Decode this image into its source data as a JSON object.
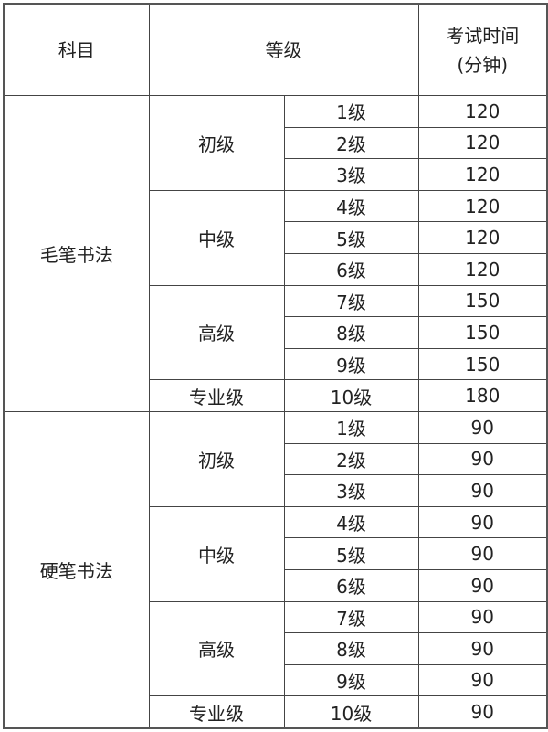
{
  "header": {
    "subject": "科目",
    "level": "等级",
    "time_line1": "考试时间",
    "time_line2": "(分钟)"
  },
  "subjects": [
    {
      "name": "毛笔书法",
      "groups": [
        {
          "name": "初级",
          "rows": [
            {
              "grade": "1级",
              "time": "120"
            },
            {
              "grade": "2级",
              "time": "120"
            },
            {
              "grade": "3级",
              "time": "120"
            }
          ]
        },
        {
          "name": "中级",
          "rows": [
            {
              "grade": "4级",
              "time": "120"
            },
            {
              "grade": "5级",
              "time": "120"
            },
            {
              "grade": "6级",
              "time": "120"
            }
          ]
        },
        {
          "name": "高级",
          "rows": [
            {
              "grade": "7级",
              "time": "150"
            },
            {
              "grade": "8级",
              "time": "150"
            },
            {
              "grade": "9级",
              "time": "150"
            }
          ]
        },
        {
          "name": "专业级",
          "rows": [
            {
              "grade": "10级",
              "time": "180"
            }
          ]
        }
      ]
    },
    {
      "name": "硬笔书法",
      "groups": [
        {
          "name": "初级",
          "rows": [
            {
              "grade": "1级",
              "time": "90"
            },
            {
              "grade": "2级",
              "time": "90"
            },
            {
              "grade": "3级",
              "time": "90"
            }
          ]
        },
        {
          "name": "中级",
          "rows": [
            {
              "grade": "4级",
              "time": "90"
            },
            {
              "grade": "5级",
              "time": "90"
            },
            {
              "grade": "6级",
              "time": "90"
            }
          ]
        },
        {
          "name": "高级",
          "rows": [
            {
              "grade": "7级",
              "time": "90"
            },
            {
              "grade": "8级",
              "time": "90"
            },
            {
              "grade": "9级",
              "time": "90"
            }
          ]
        },
        {
          "name": "专业级",
          "rows": [
            {
              "grade": "10级",
              "time": "90"
            }
          ]
        }
      ]
    }
  ]
}
